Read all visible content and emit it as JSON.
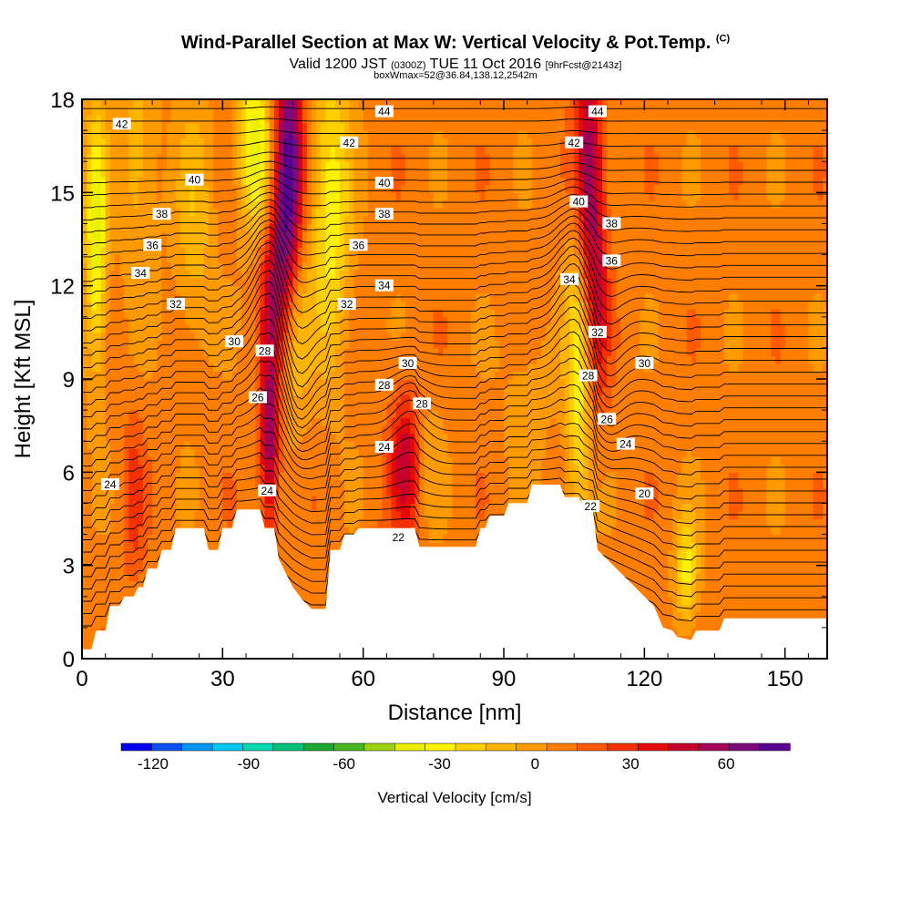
{
  "title": {
    "main": "Wind-Parallel Section at Max W: Vertical Velocity & Pot.Temp.",
    "copyright": "(C)",
    "valid_prefix": "Valid 1200 JST",
    "valid_utc": "(0300Z)",
    "valid_date": "TUE 11 Oct 2016",
    "forecast": "[9hrFcst@2143z]",
    "box_info": "boxWmax=52@36.84,138.12,2542m"
  },
  "chart_data": {
    "type": "heatmap",
    "xlabel": "Distance [nm]",
    "ylabel": "Height [Kft MSL]",
    "xlim": [
      0,
      159
    ],
    "ylim": [
      0,
      18
    ],
    "x_ticks": [
      0,
      30,
      60,
      90,
      120,
      150
    ],
    "y_ticks": [
      0,
      3,
      6,
      9,
      12,
      15,
      18
    ],
    "colorbar": {
      "label": "Vertical Velocity [cm/s]",
      "tick_labels": [
        "-120",
        "-90",
        "-60",
        "-30",
        "0",
        "30",
        "60"
      ],
      "tick_values": [
        -120,
        -90,
        -60,
        -30,
        0,
        30,
        60
      ],
      "range": [
        -130,
        80
      ],
      "colors": [
        "#0000ee",
        "#0a4ff0",
        "#0095f4",
        "#00c8f2",
        "#00d8b0",
        "#00c07a",
        "#1aa830",
        "#46b81e",
        "#9ed312",
        "#eaf000",
        "#fff200",
        "#ffd000",
        "#ffb400",
        "#ff9a00",
        "#ff7e00",
        "#ff5a00",
        "#f53000",
        "#e50a0a",
        "#c8002e",
        "#a30058",
        "#7d0a7d",
        "#5a0090"
      ]
    },
    "terrain_kft": [
      [
        0,
        0.3
      ],
      [
        2,
        0.3
      ],
      [
        3,
        0.9
      ],
      [
        5,
        0.9
      ],
      [
        6,
        1.7
      ],
      [
        8,
        1.7
      ],
      [
        9,
        2.0
      ],
      [
        11,
        2.0
      ],
      [
        12,
        2.3
      ],
      [
        13,
        2.3
      ],
      [
        14,
        2.9
      ],
      [
        16,
        2.9
      ],
      [
        17,
        3.5
      ],
      [
        19,
        3.5
      ],
      [
        20,
        4.2
      ],
      [
        26,
        4.2
      ],
      [
        27,
        3.5
      ],
      [
        29,
        3.5
      ],
      [
        30,
        4.2
      ],
      [
        32,
        4.2
      ],
      [
        33,
        4.8
      ],
      [
        38,
        4.8
      ],
      [
        39,
        4.2
      ],
      [
        41,
        4.2
      ],
      [
        42,
        3.2
      ],
      [
        43,
        2.9
      ],
      [
        45,
        2.3
      ],
      [
        47,
        1.9
      ],
      [
        49,
        1.6
      ],
      [
        52,
        1.6
      ],
      [
        53,
        3.5
      ],
      [
        55,
        3.5
      ],
      [
        56,
        4.0
      ],
      [
        58,
        4.0
      ],
      [
        59,
        4.2
      ],
      [
        71,
        4.2
      ],
      [
        72,
        3.6
      ],
      [
        84,
        3.6
      ],
      [
        85,
        4.2
      ],
      [
        86,
        4.2
      ],
      [
        87,
        4.6
      ],
      [
        90,
        4.6
      ],
      [
        91,
        5.0
      ],
      [
        95,
        5.0
      ],
      [
        96,
        5.6
      ],
      [
        102,
        5.6
      ],
      [
        103,
        5.2
      ],
      [
        106,
        5.2
      ],
      [
        107,
        4.8
      ],
      [
        109,
        4.8
      ],
      [
        110,
        3.5
      ],
      [
        112,
        3.2
      ],
      [
        116,
        2.6
      ],
      [
        118,
        2.3
      ],
      [
        122,
        1.7
      ],
      [
        124,
        1.0
      ],
      [
        126,
        0.9
      ],
      [
        127,
        0.7
      ],
      [
        130,
        0.6
      ],
      [
        131,
        0.9
      ],
      [
        136,
        0.9
      ],
      [
        137,
        1.3
      ],
      [
        159,
        1.3
      ]
    ],
    "vertical_velocity_features": [
      {
        "x": 40,
        "y": 7.0,
        "value": 52,
        "sx": 1.4,
        "sy": 2.0
      },
      {
        "x": 44,
        "y": 15.0,
        "value": 80,
        "sx": 2.2,
        "sy": 3.5
      },
      {
        "x": 40.5,
        "y": 12.0,
        "value": 30,
        "sx": 2.0,
        "sy": 2.0
      },
      {
        "x": 45,
        "y": 10.8,
        "value": -40,
        "sx": 2.2,
        "sy": 2.4
      },
      {
        "x": 37,
        "y": 16.5,
        "value": -50,
        "sx": 2.6,
        "sy": 2.0
      },
      {
        "x": 53,
        "y": 14.5,
        "value": -40,
        "sx": 3.0,
        "sy": 3.5
      },
      {
        "x": 69,
        "y": 6.3,
        "value": 40,
        "sx": 2.3,
        "sy": 1.6
      },
      {
        "x": 74,
        "y": 6.5,
        "value": -12,
        "sx": 2.2,
        "sy": 1.4
      },
      {
        "x": 108,
        "y": 15.5,
        "value": 55,
        "sx": 2.2,
        "sy": 3.0
      },
      {
        "x": 106,
        "y": 9.5,
        "value": -40,
        "sx": 2.0,
        "sy": 4.0
      },
      {
        "x": 110,
        "y": 11.0,
        "value": 25,
        "sx": 1.8,
        "sy": 2.5
      },
      {
        "x": 3,
        "y": 13.5,
        "value": -50,
        "sx": 1.6,
        "sy": 3.0
      },
      {
        "x": 12,
        "y": 16.0,
        "value": -20,
        "sx": 3.0,
        "sy": 3.0
      },
      {
        "x": 24,
        "y": 14.0,
        "value": -20,
        "sx": 3.0,
        "sy": 3.0
      },
      {
        "x": 129,
        "y": 2.8,
        "value": -35,
        "sx": 1.8,
        "sy": 1.3
      },
      {
        "x": 62,
        "y": 2.5,
        "value": 30,
        "sx": 1.5,
        "sy": 1.0
      },
      {
        "x": 11,
        "y": 5.2,
        "value": 20,
        "sx": 1.5,
        "sy": 1.8
      },
      {
        "x": 95,
        "y": 8.5,
        "value": -10,
        "sx": 4.0,
        "sy": 2.0
      }
    ],
    "theta_contour_labels": [
      {
        "x": 6,
        "y": 5.6,
        "text": "24"
      },
      {
        "x": 39.5,
        "y": 5.4,
        "text": "24"
      },
      {
        "x": 37.5,
        "y": 8.4,
        "text": "26"
      },
      {
        "x": 39,
        "y": 9.9,
        "text": "28"
      },
      {
        "x": 32.5,
        "y": 10.2,
        "text": "30"
      },
      {
        "x": 20,
        "y": 11.4,
        "text": "32"
      },
      {
        "x": 12.5,
        "y": 12.4,
        "text": "34"
      },
      {
        "x": 15,
        "y": 13.3,
        "text": "36"
      },
      {
        "x": 17,
        "y": 14.3,
        "text": "38"
      },
      {
        "x": 24,
        "y": 15.4,
        "text": "40"
      },
      {
        "x": 8.5,
        "y": 17.2,
        "text": "42"
      },
      {
        "x": 64.5,
        "y": 17.6,
        "text": "44"
      },
      {
        "x": 57,
        "y": 16.6,
        "text": "42"
      },
      {
        "x": 64.5,
        "y": 15.3,
        "text": "40"
      },
      {
        "x": 64.5,
        "y": 14.3,
        "text": "38"
      },
      {
        "x": 59,
        "y": 13.3,
        "text": "36"
      },
      {
        "x": 64.5,
        "y": 12.0,
        "text": "34"
      },
      {
        "x": 56.5,
        "y": 11.4,
        "text": "32"
      },
      {
        "x": 69.5,
        "y": 9.5,
        "text": "30"
      },
      {
        "x": 64.5,
        "y": 8.8,
        "text": "28"
      },
      {
        "x": 72.5,
        "y": 8.2,
        "text": "28"
      },
      {
        "x": 64.5,
        "y": 6.8,
        "text": "24"
      },
      {
        "x": 67.5,
        "y": 3.9,
        "text": "22"
      },
      {
        "x": 110,
        "y": 17.6,
        "text": "44"
      },
      {
        "x": 105,
        "y": 16.6,
        "text": "42"
      },
      {
        "x": 106,
        "y": 14.7,
        "text": "40"
      },
      {
        "x": 113,
        "y": 14.0,
        "text": "38"
      },
      {
        "x": 113,
        "y": 12.8,
        "text": "36"
      },
      {
        "x": 104,
        "y": 12.2,
        "text": "34"
      },
      {
        "x": 110,
        "y": 10.5,
        "text": "32"
      },
      {
        "x": 120,
        "y": 9.5,
        "text": "30"
      },
      {
        "x": 108,
        "y": 9.1,
        "text": "28"
      },
      {
        "x": 112,
        "y": 7.7,
        "text": "26"
      },
      {
        "x": 116,
        "y": 6.9,
        "text": "24"
      },
      {
        "x": 120,
        "y": 5.3,
        "text": "20"
      },
      {
        "x": 108.5,
        "y": 4.9,
        "text": "22"
      }
    ]
  }
}
